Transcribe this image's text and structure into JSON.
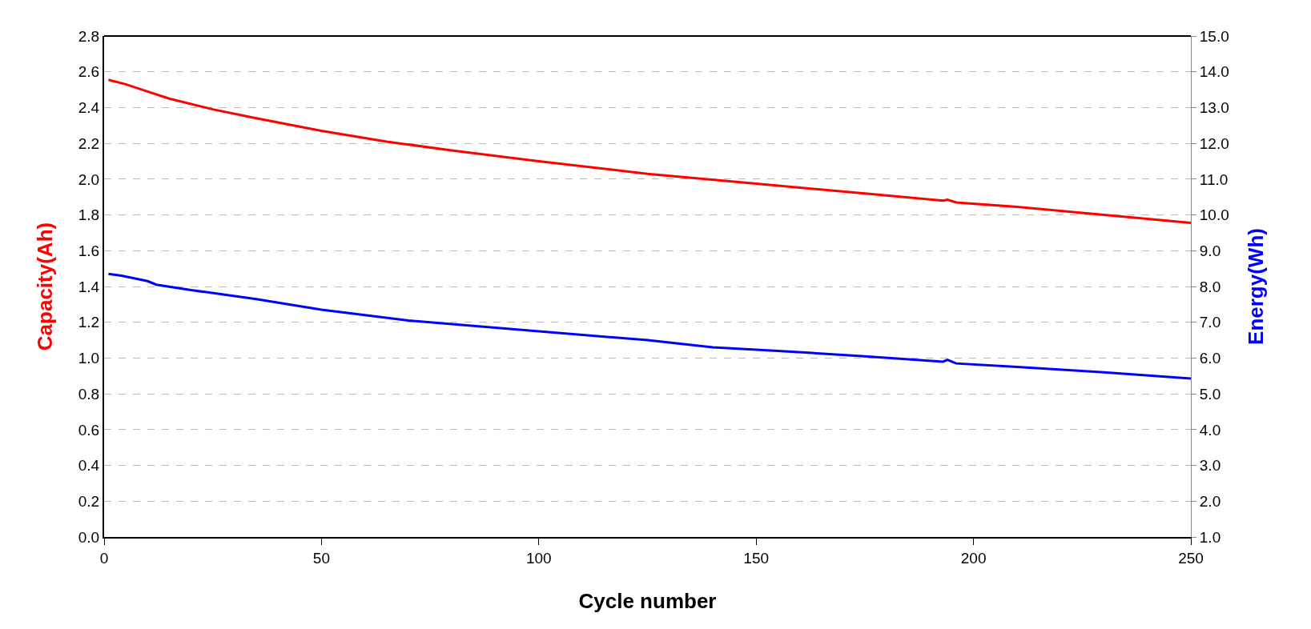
{
  "chart_data": {
    "type": "line",
    "xlabel": "Cycle number",
    "ylabel": "Capacity(Ah)",
    "y2label": "Energy(Wh)",
    "xlim": [
      0,
      250
    ],
    "xticks": [
      0,
      50,
      100,
      150,
      200,
      250
    ],
    "ylim": [
      0,
      2.8
    ],
    "yticks": [
      {
        "value": 0,
        "label": "0.0"
      },
      {
        "value": 0.2,
        "label": "0.2"
      },
      {
        "value": 0.4,
        "label": "0.4"
      },
      {
        "value": 0.6,
        "label": "0.6"
      },
      {
        "value": 0.8,
        "label": "0.8"
      },
      {
        "value": 1,
        "label": "1.0"
      },
      {
        "value": 1.2,
        "label": "1.2"
      },
      {
        "value": 1.4,
        "label": "1.4"
      },
      {
        "value": 1.6,
        "label": "1.6"
      },
      {
        "value": 1.8,
        "label": "1.8"
      },
      {
        "value": 2,
        "label": "2.0"
      },
      {
        "value": 2.2,
        "label": "2.2"
      },
      {
        "value": 2.4,
        "label": "2.4"
      },
      {
        "value": 2.6,
        "label": "2.6"
      },
      {
        "value": 2.8,
        "label": "2.8"
      }
    ],
    "y2lim": [
      1,
      15
    ],
    "y2ticks": [
      {
        "value": 1,
        "label": "1.0"
      },
      {
        "value": 2,
        "label": "2.0"
      },
      {
        "value": 3,
        "label": "3.0"
      },
      {
        "value": 4,
        "label": "4.0"
      },
      {
        "value": 5,
        "label": "5.0"
      },
      {
        "value": 6,
        "label": "6.0"
      },
      {
        "value": 7,
        "label": "7.0"
      },
      {
        "value": 8,
        "label": "8.0"
      },
      {
        "value": 9,
        "label": "9.0"
      },
      {
        "value": 10,
        "label": "10.0"
      },
      {
        "value": 11,
        "label": "11.0"
      },
      {
        "value": 12,
        "label": "12.0"
      },
      {
        "value": 13,
        "label": "13.0"
      },
      {
        "value": 14,
        "label": "14.0"
      },
      {
        "value": 15,
        "label": "15.0"
      }
    ],
    "grid": "y",
    "legend": false,
    "line_style": "solid",
    "marker": "none",
    "series": [
      {
        "color": "#ff0000",
        "x": [
          1,
          5,
          10,
          15,
          25,
          35,
          50,
          65,
          80,
          100,
          125,
          150,
          175,
          193,
          194,
          196,
          210,
          230,
          250
        ],
        "values": [
          2.555,
          2.53,
          2.49,
          2.45,
          2.39,
          2.34,
          2.27,
          2.21,
          2.16,
          2.1,
          2.03,
          1.975,
          1.92,
          1.88,
          1.885,
          1.87,
          1.845,
          1.8,
          1.755
        ]
      },
      {
        "color": "#0000ff",
        "axis": "y2",
        "x": [
          1,
          4,
          10,
          12,
          20,
          35,
          50,
          70,
          100,
          125,
          140,
          155,
          175,
          193,
          194,
          196,
          210,
          230,
          250
        ],
        "values": [
          8.35,
          8.3,
          8.15,
          8.05,
          7.9,
          7.65,
          7.35,
          7.05,
          6.75,
          6.5,
          6.3,
          6.2,
          6.05,
          5.9,
          5.95,
          5.85,
          5.75,
          5.6,
          5.43
        ]
      }
    ]
  }
}
